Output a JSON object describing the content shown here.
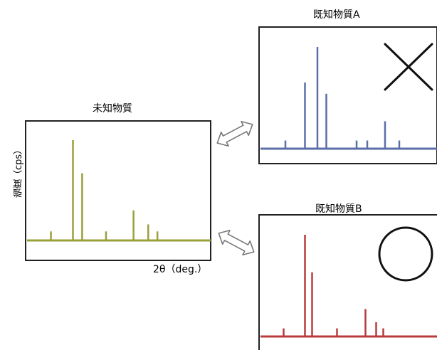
{
  "unknown": {
    "title": "未知物質",
    "ylabel": "強度（cps）",
    "xlabel": "2θ（deg.）",
    "color": "#9aa03a",
    "peaks": [
      {
        "x": 0.13,
        "h": 0.09
      },
      {
        "x": 0.25,
        "h": 1.0
      },
      {
        "x": 0.3,
        "h": 0.67
      },
      {
        "x": 0.43,
        "h": 0.09
      },
      {
        "x": 0.58,
        "h": 0.3
      },
      {
        "x": 0.66,
        "h": 0.16
      },
      {
        "x": 0.71,
        "h": 0.09
      }
    ]
  },
  "reference_a": {
    "title": "既知物質A",
    "color": "#5a6fa8",
    "match": "cross",
    "peaks": [
      {
        "x": 0.14,
        "h": 0.08
      },
      {
        "x": 0.25,
        "h": 0.65
      },
      {
        "x": 0.32,
        "h": 1.0
      },
      {
        "x": 0.37,
        "h": 0.54
      },
      {
        "x": 0.54,
        "h": 0.08
      },
      {
        "x": 0.6,
        "h": 0.08
      },
      {
        "x": 0.7,
        "h": 0.27
      },
      {
        "x": 0.78,
        "h": 0.08
      }
    ]
  },
  "reference_b": {
    "title": "既知物質B",
    "color": "#b83c3c",
    "match": "circle",
    "peaks": [
      {
        "x": 0.13,
        "h": 0.08
      },
      {
        "x": 0.25,
        "h": 1.0
      },
      {
        "x": 0.29,
        "h": 0.63
      },
      {
        "x": 0.43,
        "h": 0.08
      },
      {
        "x": 0.59,
        "h": 0.27
      },
      {
        "x": 0.65,
        "h": 0.14
      },
      {
        "x": 0.69,
        "h": 0.08
      }
    ]
  },
  "icons": {
    "arrow_top": "double-arrow-icon",
    "arrow_bottom": "double-arrow-icon",
    "mismatch": "cross-icon",
    "match": "circle-icon"
  }
}
